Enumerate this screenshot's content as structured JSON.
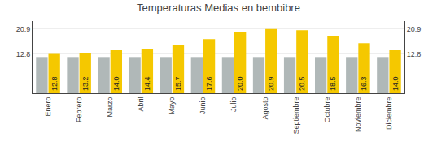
{
  "chart_data": {
    "type": "bar",
    "title": "Temperaturas Medias en bembibre",
    "categories": [
      "Enero",
      "Febrero",
      "Marzo",
      "Abril",
      "Mayo",
      "Junio",
      "Julio",
      "Agosto",
      "Septiembre",
      "Octubre",
      "Noviembre",
      "Diciembre"
    ],
    "series": [
      {
        "color": "#B0B8B8",
        "values": [
          11.8,
          11.8,
          11.8,
          11.8,
          11.8,
          11.8,
          11.8,
          11.8,
          11.8,
          11.8,
          11.8,
          11.8
        ]
      },
      {
        "color": "#F5C800",
        "values": [
          12.8,
          13.2,
          14.0,
          14.4,
          15.7,
          17.6,
          20.0,
          20.9,
          20.5,
          18.5,
          16.3,
          14.0
        ],
        "data_labels": true,
        "value_labels": [
          "12.8",
          "13.2",
          "14.0",
          "14.4",
          "15.7",
          "17.6",
          "20.0",
          "20.9",
          "20.5",
          "18.5",
          "16.3",
          "14.0"
        ]
      }
    ],
    "ylim": [
      0,
      23.5
    ],
    "yticks": [
      12.8,
      20.9
    ],
    "y2lim": [
      0,
      23.5
    ],
    "y2ticks": [
      12.8,
      20.9
    ],
    "grid": true
  }
}
